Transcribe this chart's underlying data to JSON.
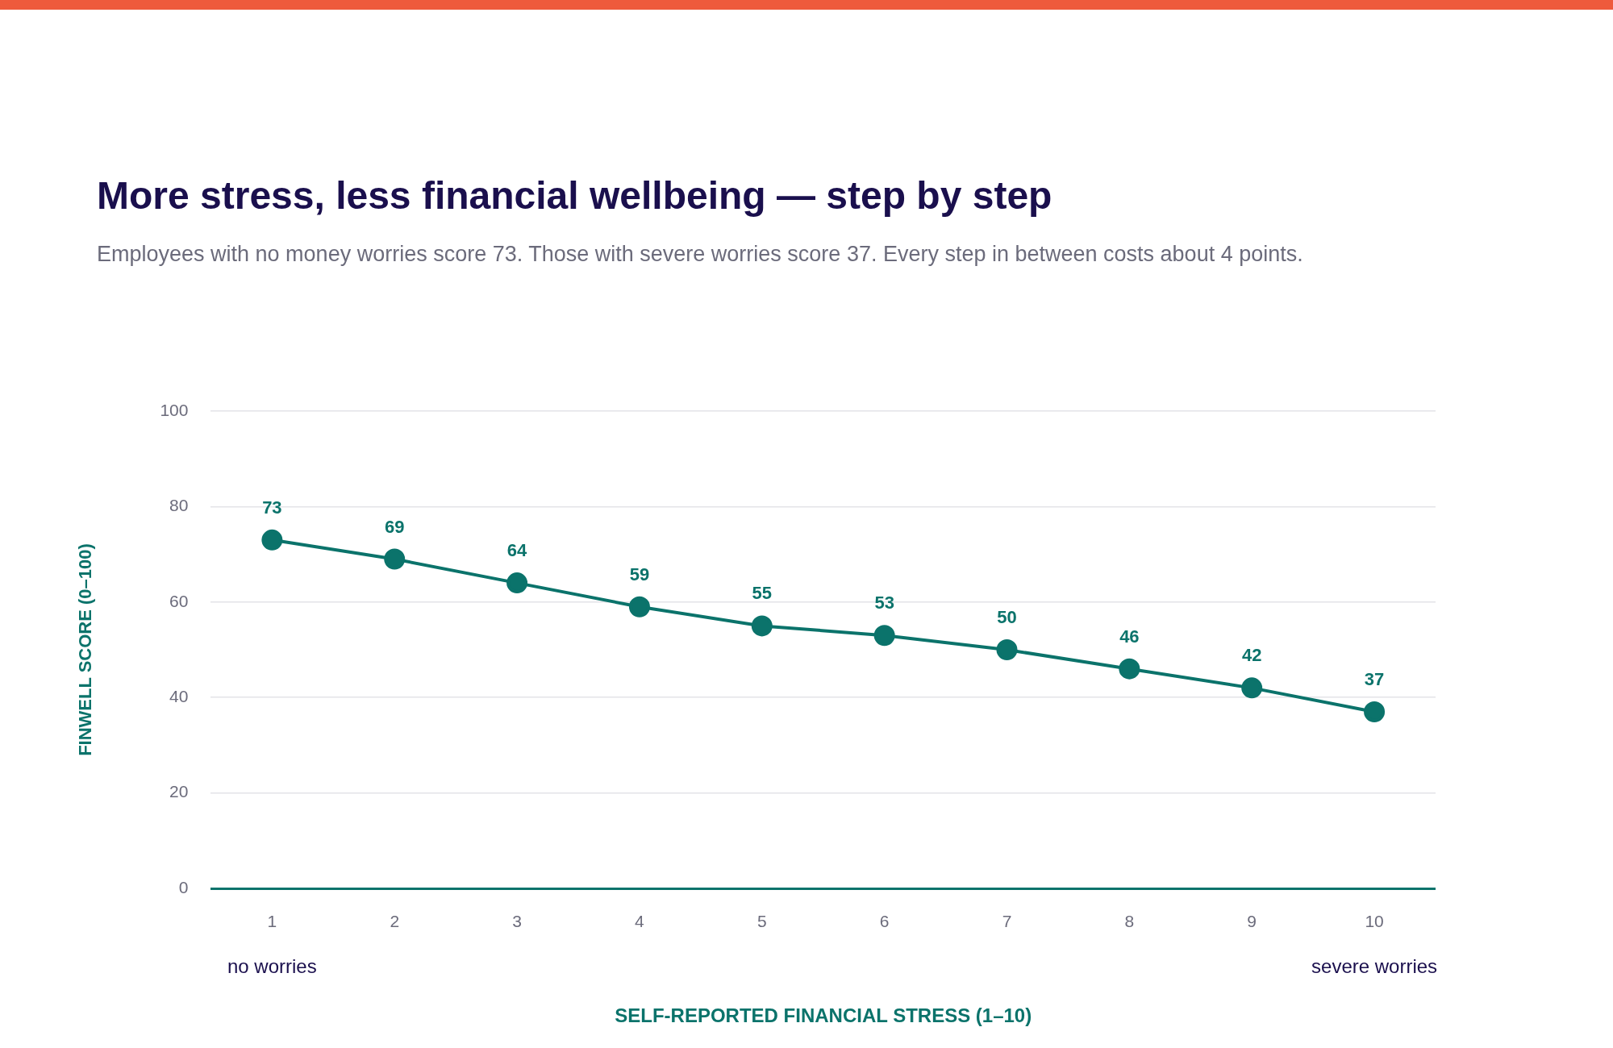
{
  "chart_data": {
    "type": "line",
    "title": "More stress, less financial wellbeing — step by step",
    "subtitle": "Employees with no money worries score 73. Those with severe worries score 37. Every step in between costs about 4 points.",
    "xlabel": "SELF-REPORTED FINANCIAL STRESS (1–10)",
    "ylabel": "FINWELL SCORE (0–100)",
    "categories": [
      "1",
      "2",
      "3",
      "4",
      "5",
      "6",
      "7",
      "8",
      "9",
      "10"
    ],
    "series": [
      {
        "color": "#0b736b",
        "values": [
          73,
          69,
          64,
          59,
          55,
          53,
          50,
          46,
          42,
          37
        ]
      }
    ],
    "ylim": [
      0,
      100
    ],
    "yticks": [
      0,
      20,
      40,
      60,
      80,
      100
    ],
    "grid": "y",
    "legend": false,
    "marker": "circle",
    "line_style": "solid",
    "data_labels": true,
    "annotations": [
      "no worries",
      "severe worries"
    ]
  }
}
